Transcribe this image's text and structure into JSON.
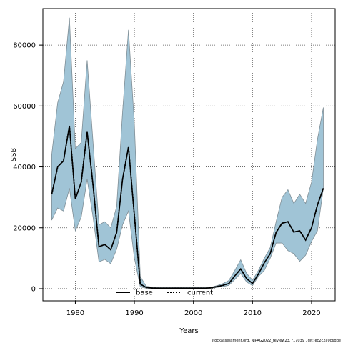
{
  "chart_data": {
    "type": "line",
    "xlabel": "Years",
    "ylabel": "SSB",
    "xlim": [
      1974.5,
      2024
    ],
    "ylim": [
      -4000,
      92000
    ],
    "x_ticks": [
      1980,
      1990,
      2000,
      2010,
      2020
    ],
    "y_ticks": [
      0,
      20000,
      40000,
      60000,
      80000
    ],
    "grid": "dotted",
    "legend_position": "bottom-center",
    "band_color": "#a0c4d6",
    "band_edge_color": "#7f8e96",
    "x": [
      1976,
      1977,
      1978,
      1979,
      1980,
      1981,
      1982,
      1983,
      1984,
      1985,
      1986,
      1987,
      1988,
      1989,
      1990,
      1991,
      1992,
      1993,
      1994,
      1995,
      1996,
      1997,
      1998,
      1999,
      2000,
      2001,
      2002,
      2003,
      2004,
      2005,
      2006,
      2007,
      2008,
      2009,
      2010,
      2011,
      2012,
      2013,
      2014,
      2015,
      2016,
      2017,
      2018,
      2019,
      2020,
      2021,
      2022
    ],
    "band_upper": [
      44000,
      61000,
      68000,
      89000,
      46000,
      48000,
      75000,
      48000,
      21000,
      22000,
      20000,
      27000,
      58000,
      85000,
      54000,
      4000,
      800,
      500,
      400,
      400,
      400,
      400,
      400,
      400,
      400,
      400,
      400,
      500,
      1000,
      1700,
      2700,
      6000,
      9500,
      5000,
      2800,
      6000,
      10000,
      13500,
      22000,
      30000,
      32500,
      28000,
      31000,
      28000,
      35000,
      49000,
      59500
    ],
    "band_lower": [
      22500,
      26500,
      25500,
      33000,
      19000,
      23500,
      36000,
      23500,
      8800,
      9600,
      8200,
      13000,
      21000,
      25500,
      10000,
      600,
      150,
      100,
      80,
      80,
      80,
      80,
      80,
      80,
      80,
      80,
      80,
      150,
      400,
      700,
      1100,
      3000,
      5000,
      2200,
      1000,
      4000,
      6000,
      10000,
      15000,
      15000,
      12500,
      11500,
      9000,
      11000,
      15500,
      19000,
      33000
    ],
    "series": [
      {
        "name": "base",
        "style": "solid",
        "color": "#000000",
        "values": [
          31000,
          40000,
          42000,
          53500,
          29500,
          35000,
          51500,
          34000,
          13800,
          14500,
          12800,
          18500,
          36000,
          46500,
          24000,
          1500,
          400,
          200,
          150,
          150,
          150,
          150,
          150,
          150,
          150,
          150,
          150,
          300,
          700,
          1100,
          1700,
          4200,
          6500,
          3300,
          1700,
          4800,
          8500,
          11500,
          18500,
          21500,
          22000,
          18600,
          19000,
          16000,
          20000,
          27500,
          33000
        ]
      },
      {
        "name": "current",
        "style": "dotted",
        "color": "#000000",
        "values": [
          31000,
          40000,
          42000,
          53500,
          29500,
          35000,
          51500,
          34000,
          13800,
          14500,
          12800,
          18500,
          36000,
          46500,
          24000,
          1500,
          400,
          200,
          150,
          150,
          150,
          150,
          150,
          150,
          150,
          150,
          150,
          300,
          700,
          1100,
          1700,
          4200,
          6500,
          3300,
          1700,
          4800,
          8500,
          11500,
          18500,
          21500,
          22000,
          18600,
          19000,
          16000,
          20000,
          27500,
          33000
        ]
      }
    ]
  },
  "footer": "stockassessment.org, NIPAG2022_review23, r17039 , git: ec2c2a0c6dde"
}
